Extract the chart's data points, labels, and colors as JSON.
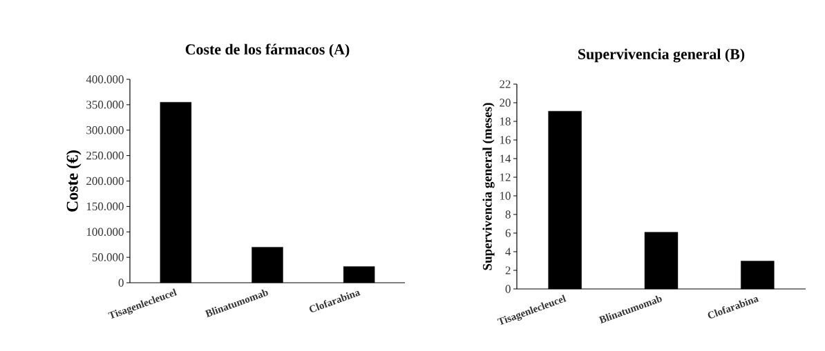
{
  "chart_data": [
    {
      "type": "bar",
      "title": "Coste de los fármacos (A)",
      "ylabel": "Coste (€)",
      "categories": [
        "Tisagenlecleucel",
        "Blinatumomab",
        "Clofarabina"
      ],
      "values": [
        355000,
        70000,
        32000
      ],
      "color": "#000000",
      "ylim": [
        0,
        400000
      ],
      "yticks": [
        0,
        {
          "value": 50000,
          "label": "50.000"
        },
        {
          "value": 100000,
          "label": "100.000"
        },
        {
          "value": 150000,
          "label": "150.000"
        },
        {
          "value": 200000,
          "label": "200.000"
        },
        {
          "value": 250000,
          "label": "250.000"
        },
        {
          "value": 300000,
          "label": "300.000"
        },
        {
          "value": 350000,
          "label": "350.000"
        },
        {
          "value": 400000,
          "label": "400.000"
        }
      ]
    },
    {
      "type": "bar",
      "title": "Supervivencia general (B)",
      "ylabel": "Supervivencia general (meses)",
      "categories": [
        "Tisagenlecleucel",
        "Blinatumomab",
        "Clofarabina"
      ],
      "values": [
        19.1,
        6.1,
        3
      ],
      "color": "#000000",
      "ylim": [
        0,
        22
      ],
      "yticks": [
        0,
        2,
        4,
        6,
        8,
        10,
        12,
        14,
        16,
        18,
        20,
        22
      ]
    }
  ]
}
